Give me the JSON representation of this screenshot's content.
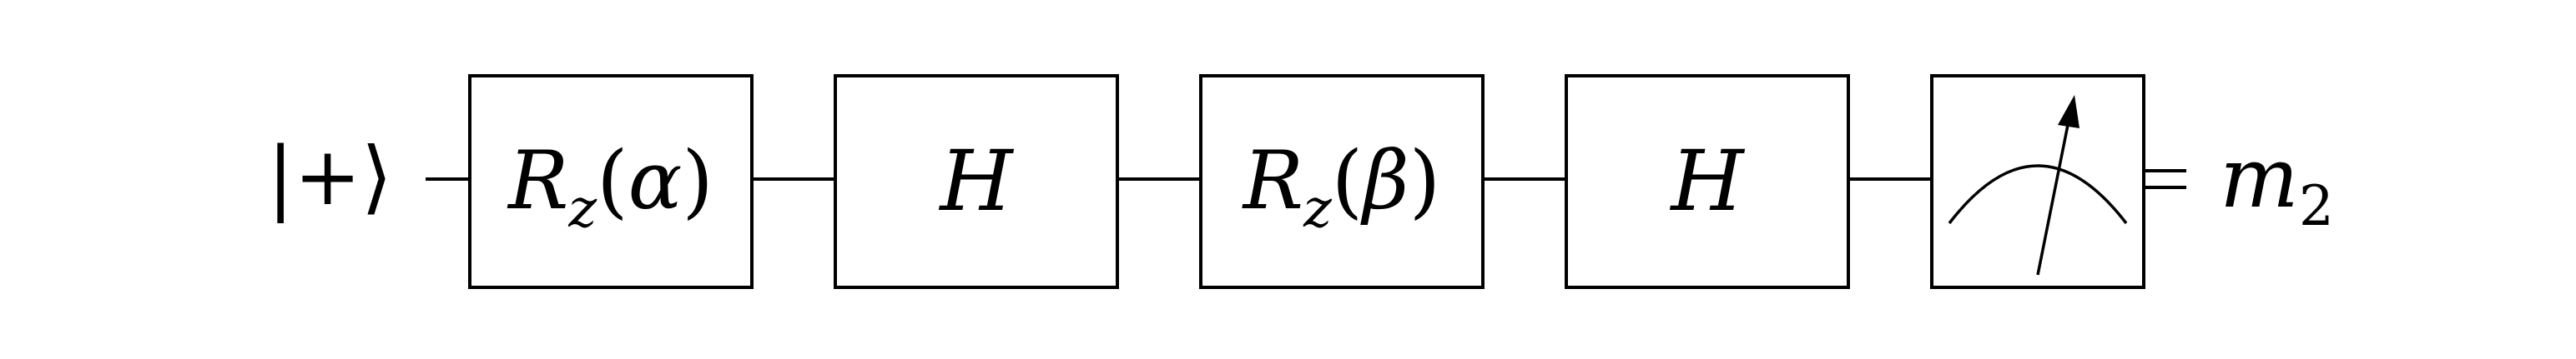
{
  "circuit": {
    "input_state": "|+⟩",
    "gates": [
      {
        "kind": "rotation",
        "symbol": "R",
        "subscript": "z",
        "open": "(",
        "angle": "α",
        "close": ")"
      },
      {
        "kind": "hadamard",
        "symbol": "H"
      },
      {
        "kind": "rotation",
        "symbol": "R",
        "subscript": "z",
        "open": "(",
        "angle": "β",
        "close": ")"
      },
      {
        "kind": "hadamard",
        "symbol": "H"
      },
      {
        "kind": "measurement",
        "icon": "meter-icon"
      }
    ],
    "output": {
      "symbol": "m",
      "subscript": "2"
    }
  },
  "style": {
    "stroke_color": "#000000",
    "background": "#ffffff"
  }
}
